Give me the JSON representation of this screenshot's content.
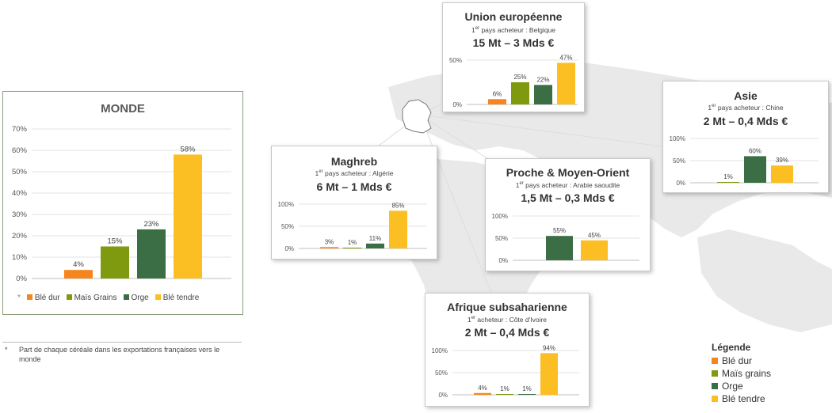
{
  "colors": {
    "ble_dur": "#f5851f",
    "mais": "#7f9a0f",
    "orge": "#3b6e45",
    "ble_tendre": "#fbbf24"
  },
  "chart_data": [
    {
      "type": "bar",
      "title": "MONDE",
      "categories": [
        "Blé dur",
        "Maïs Grains",
        "Orge",
        "Blé tendre"
      ],
      "values": [
        4,
        15,
        23,
        58
      ],
      "labels": [
        "4%",
        "15%",
        "23%",
        "58%"
      ],
      "ylim": [
        0,
        70
      ],
      "yticks": [
        "0%",
        "10%",
        "20%",
        "30%",
        "40%",
        "50%",
        "60%",
        "70%"
      ],
      "grid": true,
      "legend": "bottom",
      "legend_marker": "*"
    },
    {
      "type": "bar",
      "title": "Union européenne",
      "subtitle_sup": "er",
      "subtitle": "pays acheteur : Belgique",
      "subtitle_pre": "1",
      "volume": "15 Mt – 3 Mds €",
      "categories": [
        "Blé dur",
        "Maïs grains",
        "Orge",
        "Blé tendre"
      ],
      "values": [
        6,
        25,
        22,
        47
      ],
      "labels": [
        "6%",
        "25%",
        "22%",
        "47%"
      ],
      "ylim": [
        0,
        50
      ],
      "yticks": [
        "0%",
        "50%"
      ]
    },
    {
      "type": "bar",
      "title": "Asie",
      "subtitle_pre": "1",
      "subtitle_sup": "er",
      "subtitle": "pays acheteur : Chine",
      "volume": "2 Mt – 0,4 Mds €",
      "categories": [
        "Maïs grains",
        "Orge",
        "Blé tendre"
      ],
      "values": [
        1,
        60,
        39
      ],
      "labels": [
        "1%",
        "60%",
        "39%"
      ],
      "ylim": [
        0,
        100
      ],
      "yticks": [
        "0%",
        "50%",
        "100%"
      ]
    },
    {
      "type": "bar",
      "title": "Maghreb",
      "subtitle_pre": "1",
      "subtitle_sup": "er",
      "subtitle": "pays acheteur : Algérie",
      "volume": "6 Mt – 1 Mds €",
      "categories": [
        "Blé dur",
        "Maïs grains",
        "Orge",
        "Blé tendre"
      ],
      "values": [
        3,
        1,
        11,
        85
      ],
      "labels": [
        "3%",
        "1%",
        "11%",
        "85%"
      ],
      "ylim": [
        0,
        100
      ],
      "yticks": [
        "0%",
        "50%",
        "100%"
      ]
    },
    {
      "type": "bar",
      "title": "Proche & Moyen-Orient",
      "subtitle_pre": "1",
      "subtitle_sup": "er",
      "subtitle": "pays acheteur : Arabie saoudite",
      "volume": "1,5 Mt – 0,3 Mds €",
      "categories": [
        "Orge",
        "Blé tendre"
      ],
      "values": [
        55,
        45
      ],
      "labels": [
        "55%",
        "45%"
      ],
      "ylim": [
        0,
        100
      ],
      "yticks": [
        "0%",
        "50%",
        "100%"
      ]
    },
    {
      "type": "bar",
      "title": "Afrique subsaharienne",
      "subtitle_pre": "1",
      "subtitle_sup": "er",
      "subtitle": "acheteur : Côte d'Ivoire",
      "volume": "2 Mt – 0,4 Mds €",
      "categories": [
        "Blé dur",
        "Maïs grains",
        "Orge",
        "Blé tendre"
      ],
      "values": [
        4,
        1,
        1,
        94
      ],
      "labels": [
        "4%",
        "1%",
        "1%",
        "94%"
      ],
      "ylim": [
        0,
        100
      ],
      "yticks": [
        "0%",
        "50%",
        "100%"
      ]
    }
  ],
  "footnote": {
    "star": "*",
    "text": "Part de chaque céréale dans les exportations françaises vers le monde"
  },
  "legend": {
    "title": "Légende",
    "items": [
      "Blé dur",
      "Maïs grains",
      "Orge",
      "Blé tendre"
    ]
  }
}
